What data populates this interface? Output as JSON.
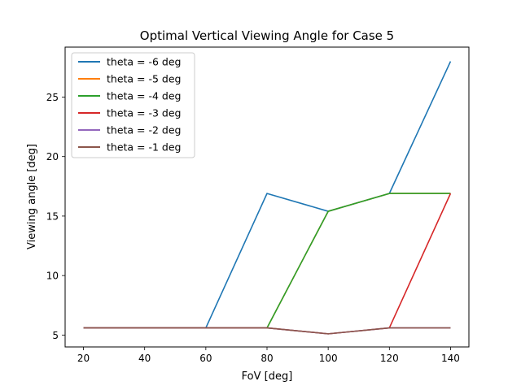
{
  "chart_data": {
    "type": "line",
    "title": "Optimal Vertical Viewing Angle for Case 5",
    "xlabel": "FoV [deg]",
    "ylabel": "Viewing angle [deg]",
    "x": [
      20,
      40,
      60,
      80,
      100,
      120,
      140
    ],
    "xticks": [
      20,
      40,
      60,
      80,
      100,
      120,
      140
    ],
    "yticks": [
      5,
      10,
      15,
      20,
      25
    ],
    "xlim": [
      14,
      146
    ],
    "ylim": [
      4.0,
      29.2
    ],
    "grid": false,
    "legend_position": "top-left",
    "series": [
      {
        "name": "theta = -6 deg",
        "color": "#1f77b4",
        "values": [
          5.6,
          5.6,
          5.6,
          16.9,
          15.4,
          16.9,
          28.0
        ]
      },
      {
        "name": "theta = -5 deg",
        "color": "#ff7f0e",
        "values": [
          5.6,
          5.6,
          5.6,
          5.6,
          15.4,
          16.9,
          16.9
        ]
      },
      {
        "name": "theta = -4 deg",
        "color": "#2ca02c",
        "values": [
          5.6,
          5.6,
          5.6,
          5.6,
          15.4,
          16.9,
          16.9
        ]
      },
      {
        "name": "theta = -3 deg",
        "color": "#d62728",
        "values": [
          5.6,
          5.6,
          5.6,
          5.6,
          5.1,
          5.6,
          16.9
        ]
      },
      {
        "name": "theta = -2 deg",
        "color": "#9467bd",
        "values": [
          5.6,
          5.6,
          5.6,
          5.6,
          5.1,
          5.6,
          5.6
        ]
      },
      {
        "name": "theta = -1 deg",
        "color": "#8c564b",
        "values": [
          5.6,
          5.6,
          5.6,
          5.6,
          5.1,
          5.6,
          5.6
        ]
      }
    ]
  }
}
